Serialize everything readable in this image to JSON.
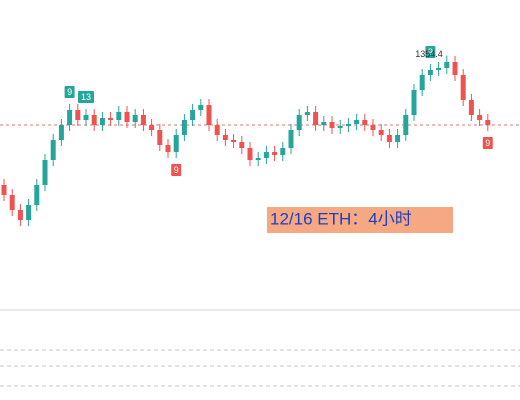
{
  "chart_data": {
    "type": "candlestick",
    "title": "12/16 ETH：4小时",
    "open": [
      1225,
      1215,
      1200,
      1190,
      1205,
      1225,
      1250,
      1270,
      1285,
      1300,
      1290,
      1295,
      1285,
      1292,
      1290,
      1298,
      1288,
      1295,
      1285,
      1280,
      1265,
      1258,
      1275,
      1290,
      1300,
      1305,
      1285,
      1275,
      1270,
      1268,
      1262,
      1250,
      1252,
      1258,
      1255,
      1262,
      1280,
      1295,
      1298,
      1285,
      1288,
      1282,
      1284,
      1286,
      1290,
      1285,
      1280,
      1275,
      1268,
      1275,
      1295,
      1320,
      1335,
      1340,
      1342,
      1348,
      1335,
      1310,
      1295,
      1290
    ],
    "high": [
      1231,
      1221,
      1206,
      1211,
      1231,
      1256,
      1276,
      1291,
      1306,
      1306,
      1301,
      1301,
      1298,
      1298,
      1304,
      1304,
      1301,
      1301,
      1291,
      1286,
      1271,
      1281,
      1296,
      1306,
      1311,
      1311,
      1291,
      1281,
      1276,
      1274,
      1268,
      1258,
      1264,
      1264,
      1268,
      1286,
      1301,
      1304,
      1304,
      1294,
      1294,
      1290,
      1292,
      1296,
      1296,
      1291,
      1286,
      1281,
      1281,
      1301,
      1326,
      1341,
      1346,
      1348,
      1354.4,
      1354,
      1341,
      1316,
      1301,
      1296
    ],
    "low": [
      1209,
      1194,
      1184,
      1184,
      1199,
      1219,
      1244,
      1264,
      1279,
      1284,
      1284,
      1279,
      1279,
      1284,
      1284,
      1282,
      1282,
      1279,
      1274,
      1259,
      1252,
      1252,
      1269,
      1284,
      1294,
      1279,
      1269,
      1264,
      1262,
      1256,
      1244,
      1244,
      1246,
      1249,
      1249,
      1256,
      1274,
      1289,
      1279,
      1279,
      1276,
      1276,
      1278,
      1280,
      1279,
      1274,
      1269,
      1262,
      1262,
      1269,
      1289,
      1314,
      1329,
      1334,
      1336,
      1329,
      1304,
      1289,
      1284,
      1279
    ],
    "close": [
      1215,
      1200,
      1190,
      1205,
      1225,
      1250,
      1270,
      1285,
      1300,
      1290,
      1295,
      1285,
      1292,
      1290,
      1298,
      1288,
      1295,
      1285,
      1280,
      1265,
      1258,
      1275,
      1290,
      1300,
      1305,
      1285,
      1275,
      1270,
      1268,
      1262,
      1250,
      1252,
      1258,
      1255,
      1262,
      1280,
      1295,
      1298,
      1285,
      1288,
      1282,
      1284,
      1286,
      1290,
      1285,
      1280,
      1275,
      1268,
      1275,
      1295,
      1320,
      1335,
      1340,
      1342,
      1348,
      1335,
      1310,
      1295,
      1290,
      1285
    ],
    "up_color": "#26a69a",
    "down_color": "#ef5350",
    "ylim": [
      1100,
      1410
    ],
    "markers": [
      {
        "index": 8,
        "label": "9",
        "color": "#26a69a"
      },
      {
        "index": 10,
        "label": "13",
        "color": "#26a69a"
      },
      {
        "index": 21,
        "label": "9",
        "color": "#ef5350"
      },
      {
        "index": 52,
        "label": "9",
        "color": "#26a69a"
      },
      {
        "index": 59,
        "label": "9",
        "color": "#ef5350"
      }
    ],
    "high_annotation_index": 54
  }
}
